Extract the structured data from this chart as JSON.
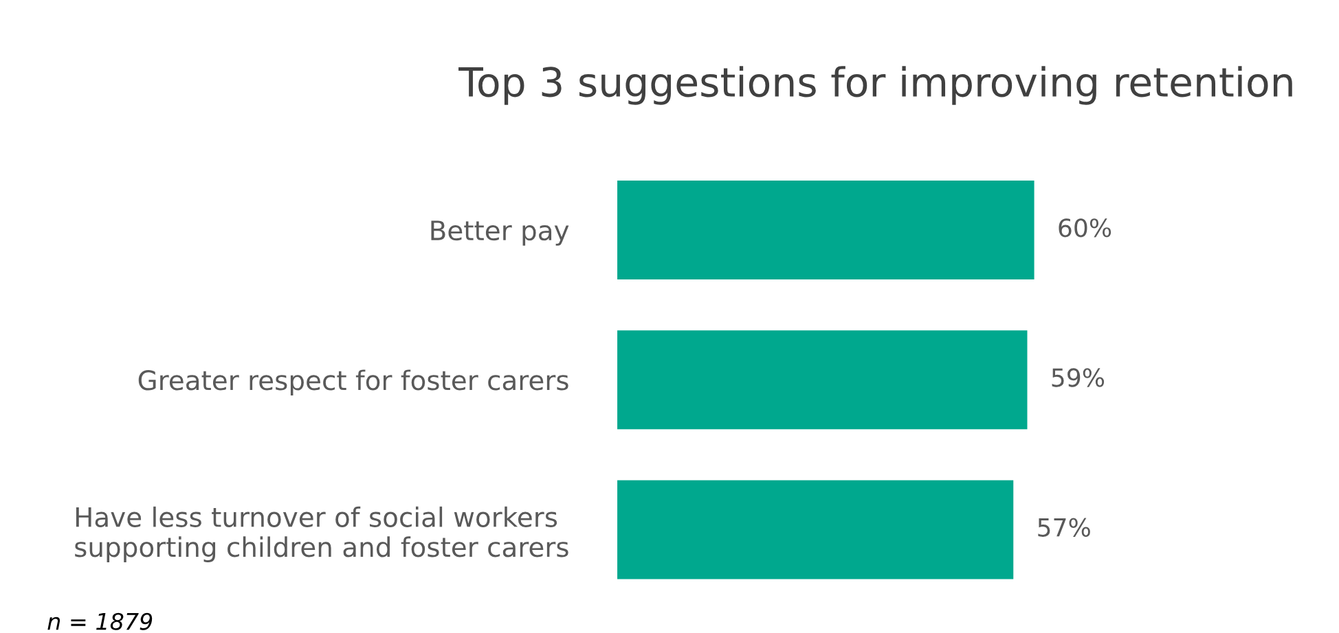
{
  "chart_data": {
    "type": "bar",
    "orientation": "horizontal",
    "title": "Top 3 suggestions for improving retention",
    "categories": [
      "Better pay",
      "Greater respect for foster carers",
      "Have less turnover of social workers\nsupporting children and foster carers"
    ],
    "values": [
      60,
      59,
      57
    ],
    "color": "#00a88e",
    "value_labels": [
      "60%",
      "59%",
      "57%"
    ],
    "tick_labels": "y",
    "grid": false,
    "legend": false,
    "annotations": [
      "n = 1879"
    ]
  }
}
